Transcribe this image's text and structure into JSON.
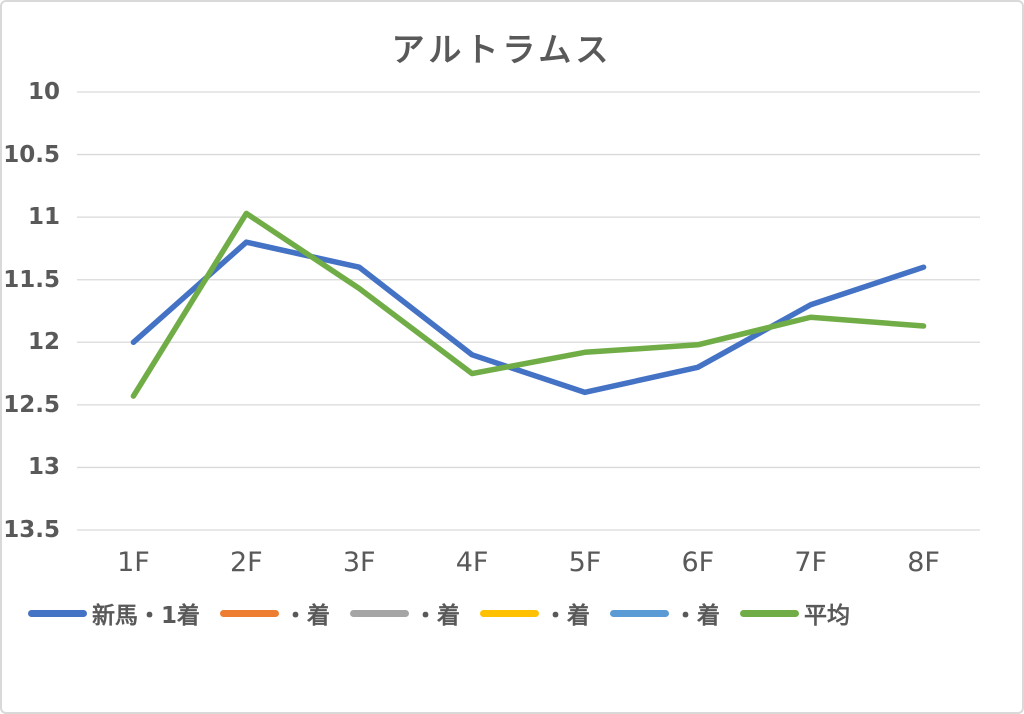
{
  "colors": {
    "background": "#FFFFFF",
    "border": "#D9D9D9",
    "gridline": "#D9D9D9",
    "text": "#595959"
  },
  "chart_data": {
    "type": "line",
    "title": "アルトラムス",
    "categories": [
      "1F",
      "2F",
      "3F",
      "4F",
      "5F",
      "6F",
      "7F",
      "8F"
    ],
    "series": [
      {
        "name": "新馬・1着",
        "color": "#4472C4",
        "values": [
          12.0,
          11.2,
          11.4,
          12.1,
          12.4,
          12.2,
          11.7,
          11.4
        ]
      },
      {
        "name": "・着",
        "color": "#ED7D31",
        "values": []
      },
      {
        "name": "・着",
        "color": "#A5A5A5",
        "values": []
      },
      {
        "name": "・着",
        "color": "#FFC000",
        "values": []
      },
      {
        "name": "・着",
        "color": "#5B9BD5",
        "values": []
      },
      {
        "name": "平均",
        "color": "#70AD47",
        "values": [
          12.43,
          10.97,
          11.57,
          12.25,
          12.08,
          12.02,
          11.8,
          11.87
        ]
      }
    ],
    "y_axis": {
      "ticks": [
        "10",
        "10.5",
        "11",
        "11.5",
        "12",
        "12.5",
        "13",
        "13.5"
      ],
      "min": 10,
      "max": 13.5,
      "inverted": true
    },
    "x_axis_label": "",
    "legend_position": "bottom",
    "grid": true
  }
}
